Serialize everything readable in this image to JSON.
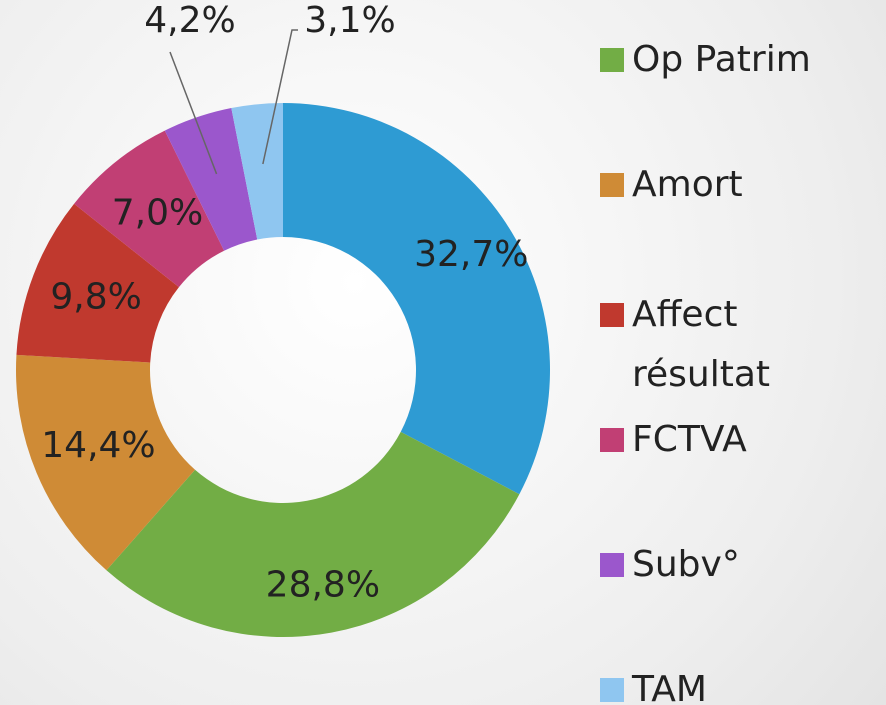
{
  "chart_data": {
    "type": "pie",
    "donut": true,
    "categories": [
      null,
      "Op Patrim",
      "Amort",
      "Affect résultat",
      "FCTVA",
      "Subv°",
      "TAM"
    ],
    "values": [
      32.7,
      28.8,
      14.4,
      9.8,
      7.0,
      4.2,
      3.1
    ],
    "value_labels": [
      "32,7%",
      "28,8%",
      "14,4%",
      "9,8%",
      "7,0%",
      "4,2%",
      "3,1%"
    ],
    "colors": [
      "#2e9bd3",
      "#72ad45",
      "#cf8b36",
      "#c0392e",
      "#c13f74",
      "#9b57cc",
      "#8fc6f0"
    ]
  }
}
